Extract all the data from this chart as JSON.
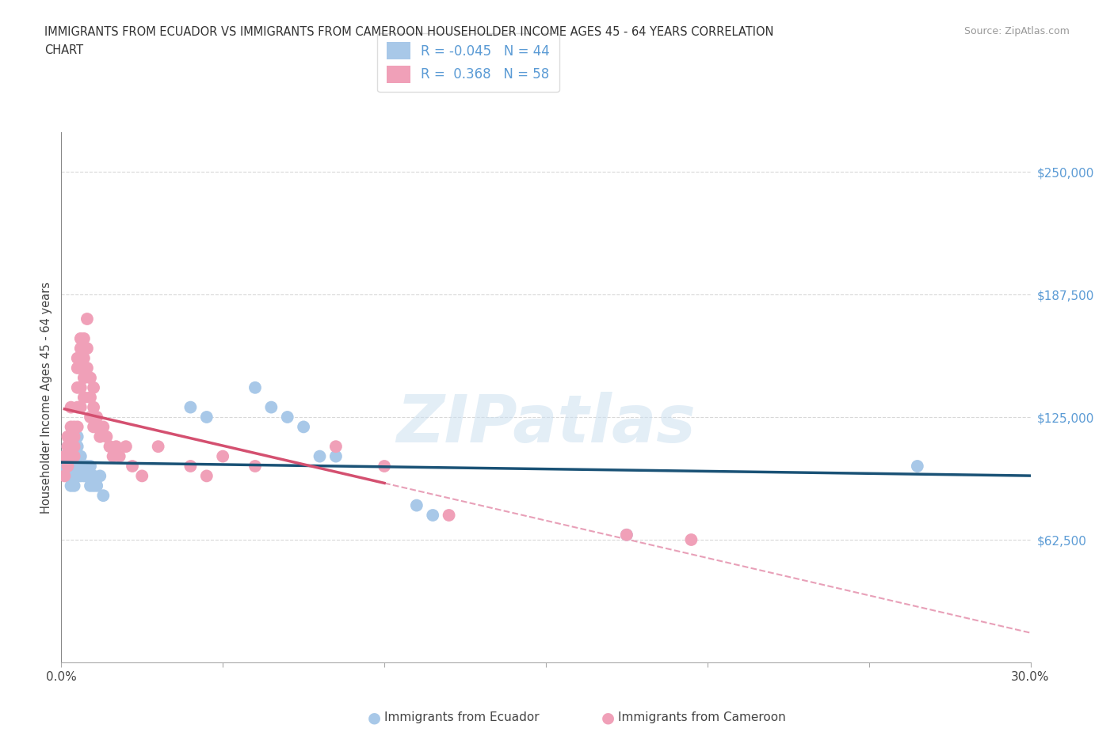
{
  "title_line1": "IMMIGRANTS FROM ECUADOR VS IMMIGRANTS FROM CAMEROON HOUSEHOLDER INCOME AGES 45 - 64 YEARS CORRELATION",
  "title_line2": "CHART",
  "source": "Source: ZipAtlas.com",
  "ylabel": "Householder Income Ages 45 - 64 years",
  "xlim": [
    0.0,
    0.3
  ],
  "ylim": [
    0,
    270000
  ],
  "yticks": [
    62500,
    125000,
    187500,
    250000
  ],
  "ytick_labels": [
    "$62,500",
    "$125,000",
    "$187,500",
    "$250,000"
  ],
  "xticks": [
    0.0,
    0.05,
    0.1,
    0.15,
    0.2,
    0.25,
    0.3
  ],
  "xtick_labels": [
    "0.0%",
    "",
    "",
    "",
    "",
    "",
    "30.0%"
  ],
  "ecuador_color": "#a8c8e8",
  "cameroon_color": "#f0a0b8",
  "ecuador_line_color": "#1a5276",
  "cameroon_line_color": "#d45070",
  "cameroon_dashed_color": "#e8a0b8",
  "R_ecuador": -0.045,
  "N_ecuador": 44,
  "R_cameroon": 0.368,
  "N_cameroon": 58,
  "ecuador_x": [
    0.001,
    0.001,
    0.002,
    0.002,
    0.002,
    0.003,
    0.003,
    0.003,
    0.003,
    0.004,
    0.004,
    0.004,
    0.004,
    0.005,
    0.005,
    0.005,
    0.005,
    0.005,
    0.006,
    0.006,
    0.006,
    0.007,
    0.007,
    0.008,
    0.008,
    0.009,
    0.009,
    0.01,
    0.01,
    0.011,
    0.012,
    0.013,
    0.04,
    0.045,
    0.06,
    0.065,
    0.07,
    0.075,
    0.08,
    0.085,
    0.11,
    0.115,
    0.175,
    0.265
  ],
  "ecuador_y": [
    105000,
    100000,
    110000,
    100000,
    95000,
    105000,
    100000,
    95000,
    90000,
    110000,
    100000,
    95000,
    90000,
    115000,
    110000,
    105000,
    100000,
    95000,
    105000,
    100000,
    95000,
    100000,
    95000,
    100000,
    95000,
    100000,
    90000,
    95000,
    90000,
    90000,
    95000,
    85000,
    130000,
    125000,
    140000,
    130000,
    125000,
    120000,
    105000,
    105000,
    80000,
    75000,
    65000,
    100000
  ],
  "cameroon_x": [
    0.001,
    0.001,
    0.002,
    0.002,
    0.002,
    0.003,
    0.003,
    0.003,
    0.003,
    0.004,
    0.004,
    0.004,
    0.004,
    0.005,
    0.005,
    0.005,
    0.005,
    0.005,
    0.006,
    0.006,
    0.006,
    0.006,
    0.006,
    0.007,
    0.007,
    0.007,
    0.007,
    0.008,
    0.008,
    0.008,
    0.009,
    0.009,
    0.009,
    0.01,
    0.01,
    0.01,
    0.011,
    0.011,
    0.012,
    0.013,
    0.014,
    0.015,
    0.016,
    0.017,
    0.018,
    0.02,
    0.022,
    0.025,
    0.03,
    0.04,
    0.045,
    0.05,
    0.06,
    0.085,
    0.1,
    0.12,
    0.175,
    0.195
  ],
  "cameroon_y": [
    105000,
    95000,
    115000,
    110000,
    100000,
    130000,
    120000,
    115000,
    105000,
    120000,
    115000,
    110000,
    105000,
    155000,
    150000,
    140000,
    130000,
    120000,
    165000,
    160000,
    150000,
    140000,
    130000,
    165000,
    155000,
    145000,
    135000,
    175000,
    160000,
    150000,
    145000,
    135000,
    125000,
    140000,
    130000,
    120000,
    125000,
    120000,
    115000,
    120000,
    115000,
    110000,
    105000,
    110000,
    105000,
    110000,
    100000,
    95000,
    110000,
    100000,
    95000,
    105000,
    100000,
    110000,
    100000,
    75000,
    65000,
    62500
  ],
  "watermark_text": "ZIPatlas",
  "background_color": "#ffffff",
  "grid_color": "#d8d8d8",
  "legend_label_ecuador": "Immigrants from Ecuador",
  "legend_label_cameroon": "Immigrants from Cameroon"
}
